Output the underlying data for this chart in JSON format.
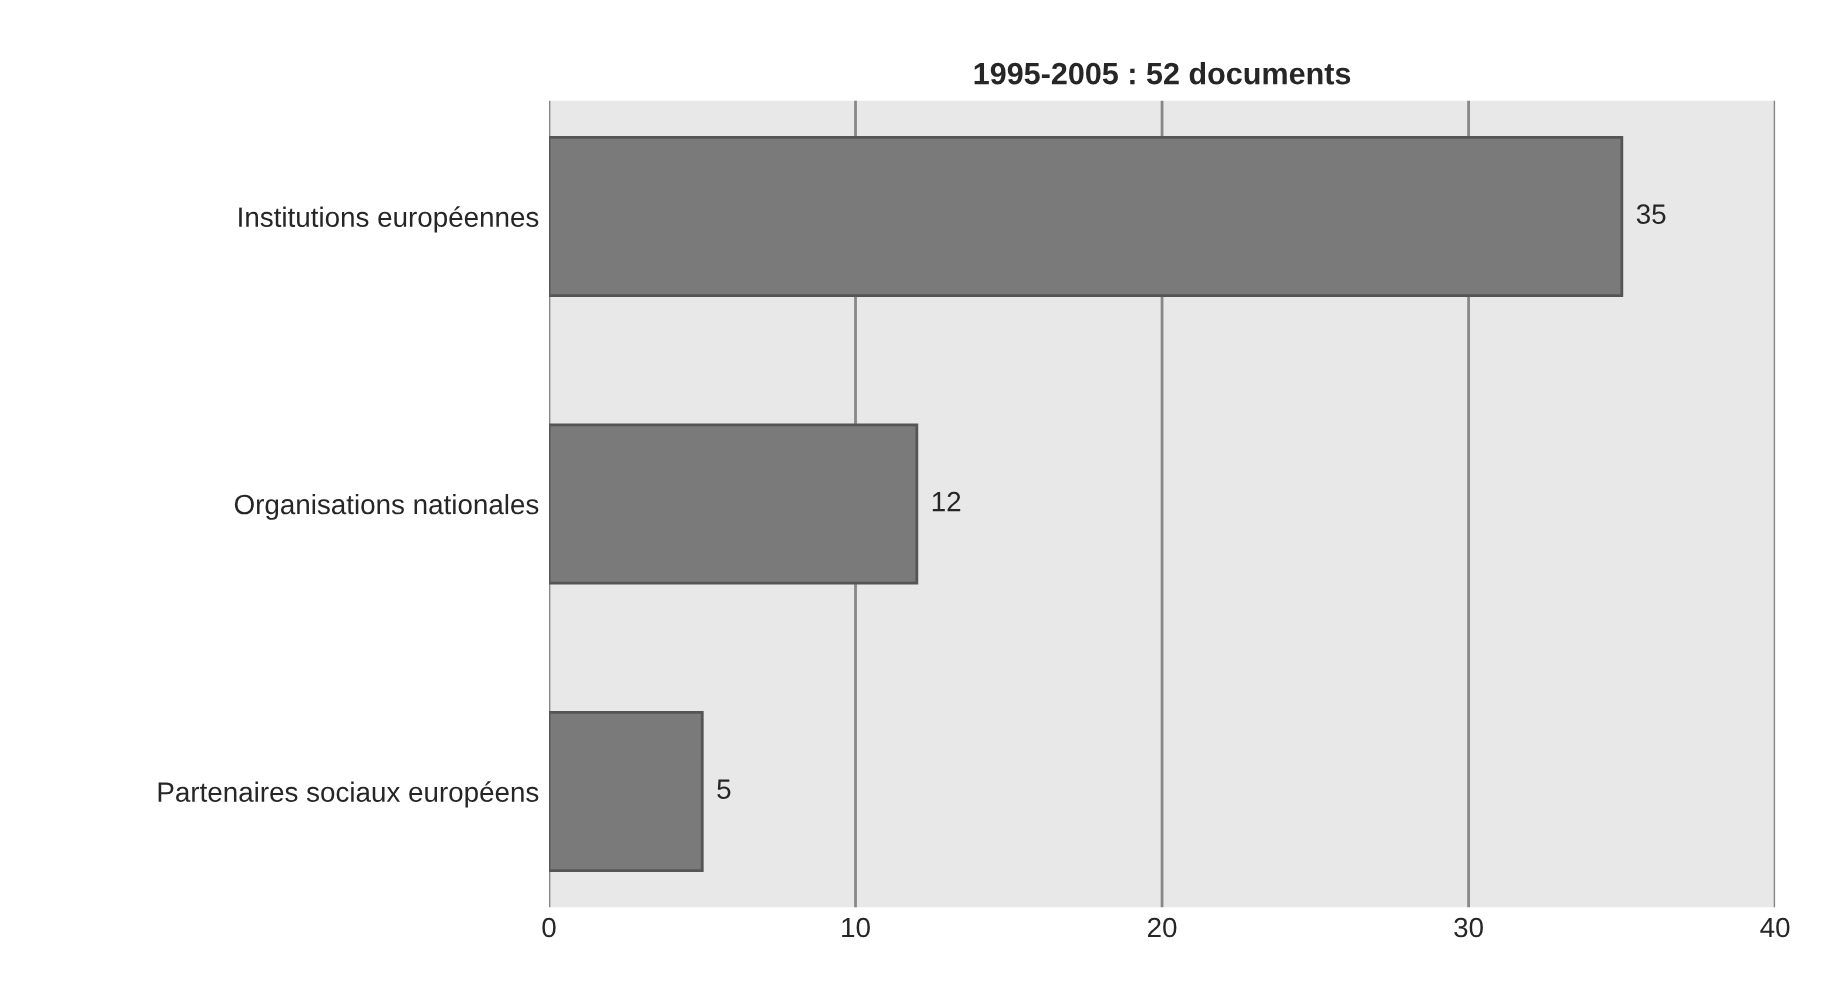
{
  "chart_data": {
    "type": "bar",
    "orientation": "horizontal",
    "title": "1995-2005 : 52 documents",
    "categories": [
      "Institutions européennes",
      "Organisations nationales",
      "Partenaires sociaux européens"
    ],
    "values": [
      35,
      12,
      5
    ],
    "color": "#7a7a7a",
    "xlim": [
      0,
      40
    ],
    "xticks": [
      0,
      10,
      20,
      30,
      40
    ],
    "grid": "x",
    "data_labels": true
  }
}
